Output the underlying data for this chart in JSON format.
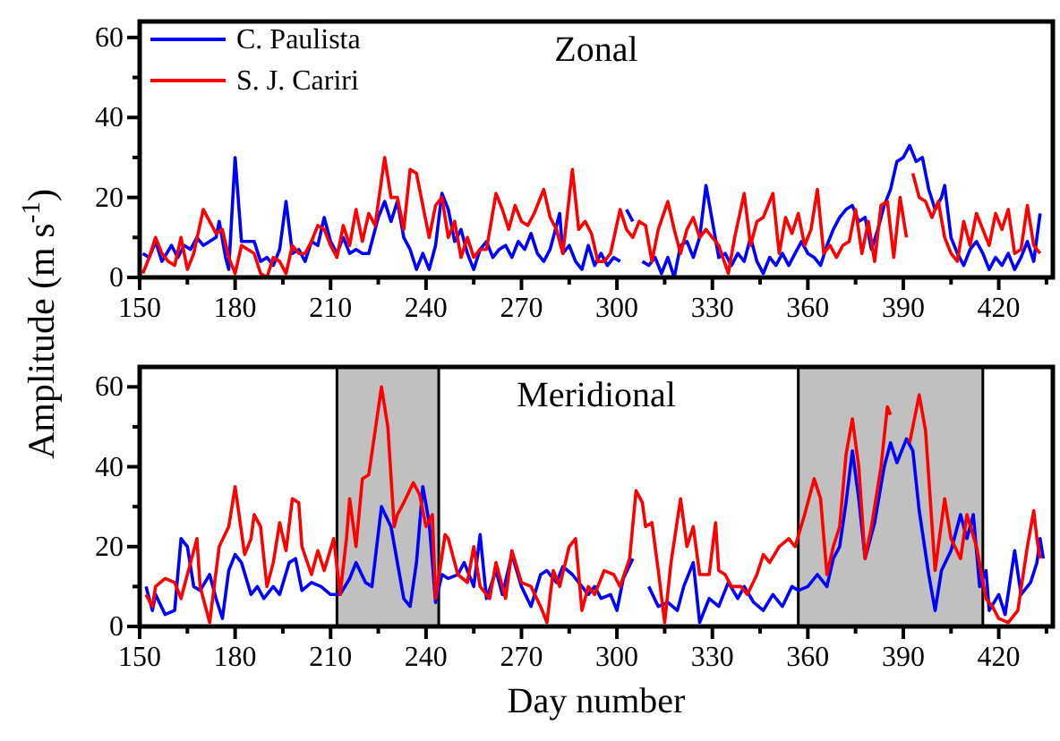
{
  "chart_data": [
    {
      "type": "line",
      "title": "Zonal",
      "ylabel": "Amplitude (m s$^{-1}$)",
      "xlim": [
        150,
        437
      ],
      "ylim": [
        0,
        64
      ],
      "xticks": [
        150,
        {
          "value": 165,
          "label": null
        },
        180,
        {
          "value": 195,
          "label": null
        },
        210,
        {
          "value": 225,
          "label": null
        },
        240,
        {
          "value": 255,
          "label": null
        },
        270,
        {
          "value": 285,
          "label": null
        },
        300,
        {
          "value": 315,
          "label": null
        },
        330,
        {
          "value": 345,
          "label": null
        },
        360,
        {
          "value": 375,
          "label": null
        },
        390,
        {
          "value": 405,
          "label": null
        },
        420,
        {
          "value": 435,
          "label": null
        }
      ],
      "yticks": [
        0,
        {
          "value": 10,
          "label": null
        },
        20,
        {
          "value": 30,
          "label": null
        },
        40,
        {
          "value": 50,
          "label": null
        },
        60
      ],
      "legend": "top left",
      "grid": false,
      "marker": "none",
      "line_style": "solid",
      "series": [
        {
          "name": "C. Paulista",
          "color": "#0000ff",
          "x": [
            151,
            153,
            155,
            157,
            160,
            162,
            164,
            166,
            168,
            170,
            172,
            174,
            175,
            177,
            178,
            180,
            182,
            184,
            186,
            188,
            190,
            192,
            194,
            196,
            198,
            200,
            202,
            204,
            206,
            208,
            210,
            212,
            214,
            216,
            218,
            220,
            222,
            225,
            227,
            229,
            231,
            233,
            235,
            237,
            239,
            241,
            243,
            245,
            247,
            249,
            251,
            253,
            255,
            257,
            259,
            261,
            263,
            265,
            267,
            269,
            271,
            273,
            275,
            277,
            279,
            281,
            282,
            283,
            285,
            287,
            289,
            291,
            293,
            295,
            297,
            299,
            301,
            302,
            303,
            305,
            306,
            308,
            310,
            312,
            314,
            316,
            318,
            320,
            322,
            324,
            326,
            328,
            330,
            332,
            334,
            336,
            338,
            340,
            342,
            344,
            346,
            348,
            350,
            352,
            354,
            356,
            358,
            360,
            362,
            364,
            366,
            368,
            370,
            372,
            374,
            376,
            378,
            380,
            382,
            384,
            386,
            388,
            390,
            392,
            394,
            396,
            398,
            400,
            402,
            403,
            405,
            407,
            409,
            411,
            413,
            415,
            417,
            419,
            421,
            423,
            425,
            427,
            429,
            431,
            433
          ],
          "values": [
            6,
            5,
            9,
            4,
            8,
            5,
            8,
            7,
            10,
            8,
            9,
            10,
            14,
            5,
            2,
            30,
            9,
            9,
            9,
            4,
            5,
            3,
            7,
            19,
            6,
            7,
            4,
            9,
            8,
            15,
            9,
            6,
            10,
            6,
            7,
            6,
            6,
            15,
            19,
            14,
            19,
            10,
            7,
            2,
            6,
            2,
            8,
            21,
            17,
            9,
            12,
            6,
            2,
            7,
            9,
            5,
            7,
            8,
            5,
            9,
            7,
            11,
            6,
            4,
            7,
            13,
            16,
            6,
            8,
            4,
            2,
            8,
            3,
            6,
            3,
            5,
            4,
            null,
            17,
            14,
            null,
            4,
            3,
            5,
            1,
            5,
            0,
            8,
            9,
            5,
            10,
            23,
            14,
            5,
            6,
            3,
            6,
            4,
            10,
            4,
            1,
            5,
            3,
            6,
            3,
            6,
            9,
            6,
            5,
            3,
            8,
            12,
            15,
            17,
            18,
            14,
            15,
            7,
            12,
            18,
            22,
            29,
            30,
            33,
            29,
            30,
            22,
            17,
            20,
            23,
            10,
            6,
            3,
            7,
            9,
            6,
            2,
            5,
            3,
            6,
            2,
            5,
            9,
            4,
            16
          ]
        },
        {
          "name": "S. J. Cariri",
          "color": "#ff0000",
          "x": [
            151,
            153,
            155,
            157,
            159,
            161,
            163,
            165,
            167,
            170,
            172,
            174,
            176,
            178,
            180,
            182,
            184,
            186,
            188,
            190,
            192,
            194,
            196,
            198,
            200,
            202,
            204,
            206,
            208,
            210,
            212,
            214,
            216,
            218,
            220,
            222,
            224,
            227,
            229,
            231,
            233,
            235,
            237,
            239,
            241,
            243,
            245,
            247,
            249,
            251,
            253,
            255,
            257,
            259,
            262,
            264,
            266,
            268,
            270,
            272,
            274,
            277,
            279,
            281,
            283,
            286,
            288,
            290,
            292,
            294,
            296,
            298,
            301,
            303,
            305,
            307,
            309,
            311,
            313,
            316,
            318,
            320,
            322,
            324,
            326,
            328,
            330,
            332,
            335,
            337,
            340,
            342,
            344,
            346,
            349,
            351,
            353,
            355,
            357,
            359,
            361,
            363,
            365,
            367,
            369,
            371,
            373,
            375,
            377,
            379,
            381,
            383,
            385,
            387,
            389,
            391,
            392,
            393,
            395,
            397,
            399,
            401,
            403,
            405,
            407,
            409,
            411,
            413,
            415,
            417,
            419,
            421,
            423,
            425,
            427,
            429,
            431,
            433
          ],
          "values": [
            1,
            5,
            10,
            6,
            4,
            3,
            10,
            2,
            6,
            17,
            14,
            11,
            12,
            5,
            1,
            8,
            7,
            6,
            1,
            0,
            5,
            4,
            1,
            8,
            6,
            6,
            9,
            13,
            12,
            8,
            5,
            13,
            8,
            17,
            9,
            16,
            13,
            30,
            20,
            20,
            12,
            27,
            26,
            18,
            10,
            18,
            20,
            10,
            14,
            5,
            10,
            5,
            7,
            7,
            21,
            17,
            12,
            18,
            14,
            13,
            16,
            22,
            15,
            12,
            6,
            27,
            12,
            14,
            11,
            4,
            4,
            6,
            17,
            12,
            10,
            14,
            13,
            4,
            12,
            19,
            12,
            6,
            12,
            15,
            10,
            12,
            10,
            8,
            1,
            10,
            21,
            8,
            14,
            15,
            21,
            6,
            15,
            11,
            16,
            8,
            12,
            22,
            6,
            8,
            5,
            8,
            9,
            17,
            6,
            14,
            4,
            18,
            19,
            5,
            20,
            10,
            null,
            26,
            20,
            19,
            15,
            19,
            10,
            6,
            4,
            14,
            8,
            16,
            12,
            8,
            16,
            12,
            17,
            6,
            7,
            18,
            8,
            6
          ]
        }
      ]
    },
    {
      "type": "line",
      "title": "Meridional",
      "xlabel": "Day number",
      "xlim": [
        150,
        437
      ],
      "ylim": [
        0,
        65
      ],
      "xticks": [
        150,
        {
          "value": 165,
          "label": null
        },
        180,
        {
          "value": 195,
          "label": null
        },
        210,
        {
          "value": 225,
          "label": null
        },
        240,
        {
          "value": 255,
          "label": null
        },
        270,
        {
          "value": 285,
          "label": null
        },
        300,
        {
          "value": 315,
          "label": null
        },
        330,
        {
          "value": 345,
          "label": null
        },
        360,
        {
          "value": 375,
          "label": null
        },
        390,
        {
          "value": 405,
          "label": null
        },
        420,
        {
          "value": 435,
          "label": null
        }
      ],
      "yticks": [
        0,
        {
          "value": 10,
          "label": null
        },
        20,
        {
          "value": 30,
          "label": null
        },
        40,
        {
          "value": 50,
          "label": null
        },
        60
      ],
      "grid": false,
      "marker": "none",
      "line_style": "solid",
      "bands": [
        {
          "axis": "x",
          "from": 212,
          "to": 244,
          "color": "#c0c0c0"
        },
        {
          "axis": "x",
          "from": 357,
          "to": 415,
          "color": "#c0c0c0"
        }
      ],
      "series": [
        {
          "color": "#0000ff",
          "x": [
            152,
            154,
            155,
            158,
            161,
            163,
            165,
            167,
            169,
            172,
            174,
            176,
            178,
            180,
            182,
            185,
            187,
            189,
            192,
            194,
            197,
            199,
            201,
            204,
            207,
            210,
            213,
            216,
            218,
            221,
            223,
            226,
            229,
            231,
            233,
            235,
            237,
            239,
            241,
            243,
            245,
            247,
            250,
            252,
            255,
            257,
            259,
            262,
            264,
            267,
            270,
            273,
            276,
            278,
            281,
            283,
            286,
            289,
            291,
            293,
            295,
            298,
            300,
            302,
            305,
            306,
            310,
            313,
            316,
            319,
            321,
            324,
            326,
            329,
            332,
            335,
            338,
            340,
            343,
            346,
            349,
            352,
            355,
            357,
            360,
            363,
            366,
            368,
            370,
            372,
            374,
            376,
            378,
            381,
            384,
            386,
            388,
            391,
            393,
            395,
            398,
            400,
            402,
            405,
            408,
            410,
            412,
            414,
            416,
            417,
            420,
            422,
            425,
            427,
            430,
            432,
            433,
            434
          ],
          "values": [
            10,
            4,
            8,
            3,
            4,
            22,
            20,
            10,
            9,
            13,
            7,
            2,
            14,
            18,
            16,
            8,
            10,
            7,
            10,
            8,
            16,
            17,
            9,
            11,
            10,
            8,
            8,
            12,
            16,
            11,
            10,
            30,
            25,
            16,
            7,
            5,
            16,
            35,
            26,
            6,
            13,
            12,
            13,
            16,
            10,
            23,
            7,
            14,
            8,
            18,
            10,
            5,
            13,
            14,
            11,
            15,
            13,
            10,
            8,
            10,
            7,
            8,
            4,
            12,
            17,
            null,
            10,
            5,
            6,
            4,
            10,
            16,
            1,
            7,
            5,
            11,
            7,
            10,
            6,
            4,
            8,
            5,
            10,
            9,
            10,
            13,
            10,
            17,
            20,
            31,
            44,
            32,
            17,
            26,
            40,
            46,
            41,
            47,
            44,
            29,
            13,
            4,
            14,
            19,
            28,
            22,
            28,
            10,
            14,
            4,
            8,
            3,
            19,
            8,
            11,
            16,
            22,
            17
          ]
        },
        {
          "color": "#ff0000",
          "x": [
            152,
            154,
            155,
            158,
            161,
            163,
            166,
            168,
            169,
            172,
            175,
            178,
            180,
            183,
            185,
            186,
            188,
            190,
            192,
            194,
            196,
            198,
            200,
            201,
            204,
            206,
            208,
            211,
            213,
            215,
            216,
            218,
            220,
            222,
            224,
            226,
            228,
            230,
            231,
            233,
            236,
            238,
            240,
            242,
            243,
            246,
            247,
            250,
            253,
            255,
            257,
            260,
            262,
            265,
            267,
            270,
            273,
            276,
            278,
            280,
            282,
            285,
            287,
            289,
            291,
            293,
            296,
            299,
            301,
            304,
            306,
            308,
            309,
            311,
            313,
            315,
            317,
            320,
            322,
            324,
            326,
            329,
            331,
            332,
            334,
            336,
            339,
            341,
            344,
            346,
            348,
            351,
            354,
            356,
            359,
            362,
            364,
            366,
            368,
            370,
            372,
            374,
            376,
            378,
            380,
            383,
            385,
            386,
            387,
            392,
            395,
            397,
            400,
            401,
            403,
            405,
            408,
            410,
            413,
            416,
            418,
            420,
            423,
            426,
            429,
            431,
            432,
            433
          ],
          "values": [
            8,
            5,
            10,
            12,
            11,
            7,
            16,
            22,
            10,
            1,
            20,
            25,
            35,
            18,
            22,
            28,
            25,
            10,
            16,
            26,
            19,
            32,
            31,
            20,
            13,
            19,
            14,
            22,
            8,
            22,
            32,
            20,
            37,
            38,
            49,
            60,
            50,
            25,
            28,
            31,
            36,
            33,
            25,
            28,
            7,
            23,
            22,
            13,
            11,
            20,
            10,
            7,
            16,
            7,
            19,
            11,
            10,
            5,
            1,
            14,
            10,
            20,
            22,
            4,
            10,
            8,
            14,
            13,
            10,
            17,
            34,
            31,
            25,
            26,
            14,
            1,
            16,
            32,
            20,
            25,
            13,
            13,
            26,
            14,
            13,
            10,
            10,
            8,
            13,
            18,
            16,
            20,
            22,
            20,
            28,
            37,
            32,
            13,
            20,
            25,
            43,
            52,
            40,
            17,
            25,
            40,
            55,
            53,
            null,
            46,
            58,
            49,
            14,
            20,
            32,
            22,
            17,
            28,
            20,
            7,
            5,
            2,
            1,
            4,
            20,
            29,
            22,
            17
          ]
        }
      ]
    }
  ]
}
